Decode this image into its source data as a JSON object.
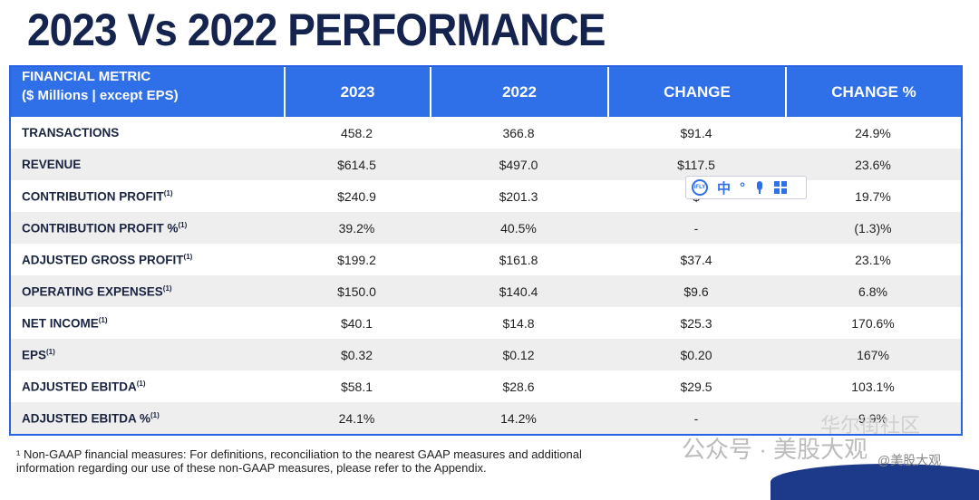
{
  "title": "2023 Vs 2022 PERFORMANCE",
  "table": {
    "header": {
      "metric_line1": "FINANCIAL METRIC",
      "metric_line2": "($ Millions | except EPS)",
      "col_2023": "2023",
      "col_2022": "2022",
      "col_change": "CHANGE",
      "col_change_pct": "CHANGE %"
    },
    "rows": [
      {
        "metric": "TRANSACTIONS",
        "sup": "",
        "v2023": "458.2",
        "v2022": "366.8",
        "change": "$91.4",
        "change_pct": "24.9%"
      },
      {
        "metric": "REVENUE",
        "sup": "",
        "v2023": "$614.5",
        "v2022": "$497.0",
        "change": "$117.5",
        "change_pct": "23.6%"
      },
      {
        "metric": "CONTRIBUTION PROFIT",
        "sup": "(1)",
        "v2023": "$240.9",
        "v2022": "$201.3",
        "change": "$",
        "change_pct": "19.7%"
      },
      {
        "metric": "CONTRIBUTION PROFIT %",
        "sup": "(1)",
        "v2023": "39.2%",
        "v2022": "40.5%",
        "change": "-",
        "change_pct": "(1.3)%"
      },
      {
        "metric": "ADJUSTED GROSS PROFIT",
        "sup": "(1)",
        "v2023": "$199.2",
        "v2022": "$161.8",
        "change": "$37.4",
        "change_pct": "23.1%"
      },
      {
        "metric": "OPERATING EXPENSES",
        "sup": "(1)",
        "v2023": "$150.0",
        "v2022": "$140.4",
        "change": "$9.6",
        "change_pct": "6.8%"
      },
      {
        "metric": "NET INCOME",
        "sup": "(1)",
        "v2023": "$40.1",
        "v2022": "$14.8",
        "change": "$25.3",
        "change_pct": "170.6%"
      },
      {
        "metric": "EPS",
        "sup": "(1)",
        "v2023": "$0.32",
        "v2022": "$0.12",
        "change": "$0.20",
        "change_pct": "167%"
      },
      {
        "metric": "ADJUSTED EBITDA",
        "sup": "(1)",
        "v2023": "$58.1",
        "v2022": "$28.6",
        "change": "$29.5",
        "change_pct": "103.1%"
      },
      {
        "metric": "ADJUSTED EBITDA %",
        "sup": "(1)",
        "v2023": "24.1%",
        "v2022": "14.2%",
        "change": "-",
        "change_pct": "9.9%"
      }
    ]
  },
  "footnote": {
    "line1": "¹ Non-GAAP financial measures: For definitions, reconciliation to the nearest GAAP measures and additional",
    "line2": "information regarding our use of these non-GAAP measures, please refer to the Appendix."
  },
  "ime_toolbar": {
    "logo": "iFLY",
    "chinese": "中",
    "icons": [
      "dot-icon",
      "mic-icon",
      "grid-icon"
    ]
  },
  "watermark": {
    "main": "公众号 · 美股大观",
    "top": "华尔街社区",
    "handle": "@美股大观"
  }
}
